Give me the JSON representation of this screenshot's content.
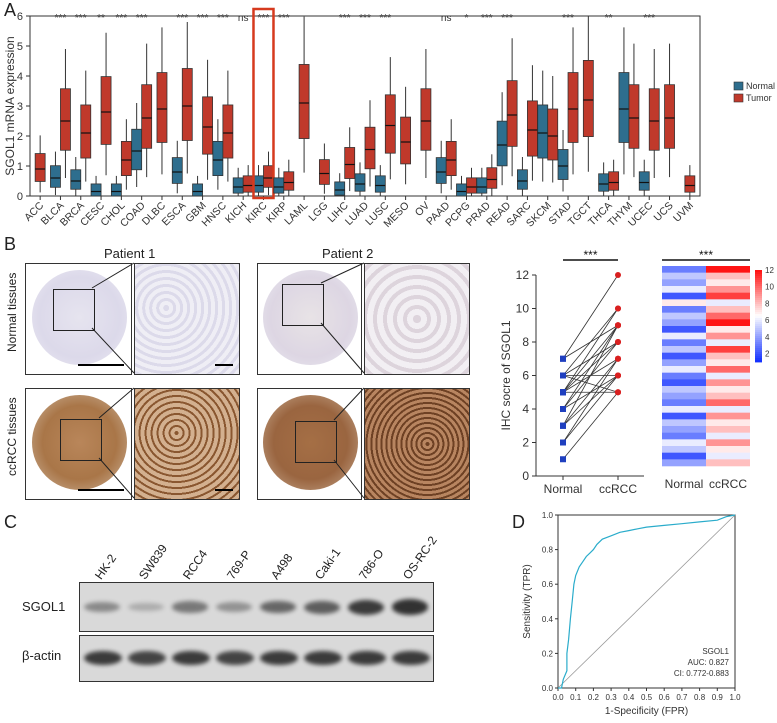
{
  "panels": {
    "A": "A",
    "B": "B",
    "C": "C",
    "D": "D"
  },
  "panelA": {
    "chart_data": {
      "type": "boxplot",
      "ylabel": "SGOL1 mRNA expression",
      "ylim": [
        0,
        6
      ],
      "yticks": [
        "0",
        "1",
        "2",
        "3",
        "4",
        "5",
        "6"
      ],
      "legend": {
        "position": "right",
        "items": [
          {
            "name": "Normal",
            "color": "#2e6e8e"
          },
          {
            "name": "Tumor",
            "color": "#c0392b"
          }
        ]
      },
      "highlight": "KIRC",
      "categories": [
        "ACC",
        "BLCA",
        "BRCA",
        "CESC",
        "CHOL",
        "COAD",
        "DLBC",
        "ESCA",
        "GBM",
        "HNSC",
        "KICH",
        "KIRC",
        "KIRP",
        "LAML",
        "LGG",
        "LIHC",
        "LUAD",
        "LUSC",
        "MESO",
        "OV",
        "PAAD",
        "PCPG",
        "PRAD",
        "READ",
        "SARC",
        "SKCM",
        "STAD",
        "TGCT",
        "THCA",
        "THYM",
        "UCEC",
        "UCS",
        "UVM"
      ],
      "significance": [
        "",
        "***",
        "***",
        "**",
        "***",
        "***",
        "",
        "***",
        "***",
        "***",
        "ns",
        "***",
        "***",
        "",
        "",
        "***",
        "***",
        "***",
        "",
        "",
        "ns",
        "*",
        "***",
        "***",
        "",
        "",
        "***",
        "",
        "**",
        "",
        "***",
        "",
        ""
      ],
      "series": [
        {
          "name": "Normal",
          "values": [
            null,
            0.6,
            0.5,
            0.15,
            0.15,
            1.5,
            null,
            0.8,
            0.15,
            1.2,
            0.3,
            0.35,
            0.3,
            null,
            null,
            0.2,
            0.4,
            0.35,
            null,
            null,
            0.8,
            0.15,
            0.3,
            1.7,
            0.5,
            2.1,
            1.0,
            null,
            0.4,
            2.9,
            0.45,
            null,
            null
          ]
        },
        {
          "name": "Tumor",
          "values": [
            0.9,
            2.5,
            2.1,
            2.8,
            1.2,
            2.6,
            2.9,
            3.0,
            2.3,
            2.1,
            0.35,
            0.6,
            0.45,
            3.1,
            0.75,
            1.05,
            1.55,
            2.35,
            1.8,
            2.5,
            1.2,
            0.3,
            0.55,
            2.7,
            2.2,
            2.0,
            2.9,
            3.2,
            0.45,
            2.6,
            2.5,
            2.6,
            0.35
          ]
        }
      ]
    }
  },
  "panelB": {
    "patient1": "Patient 1",
    "patient2": "Patient 2",
    "row_normal": "Normal tissues",
    "row_ccrcc": "ccRCC tissues",
    "chart_data": {
      "type": "paired-dot",
      "ylabel": "IHC socre of SGOL1",
      "ylim": [
        0,
        12
      ],
      "yticks": [
        "0",
        "2",
        "4",
        "6",
        "8",
        "10",
        "12"
      ],
      "categories": [
        "Normal",
        "ccRCC"
      ],
      "significance": "***",
      "pairs": [
        [
          1,
          5
        ],
        [
          2,
          6
        ],
        [
          3,
          7
        ],
        [
          3,
          6
        ],
        [
          4,
          8
        ],
        [
          4,
          9
        ],
        [
          5,
          5
        ],
        [
          5,
          7
        ],
        [
          5,
          10
        ],
        [
          6,
          6
        ],
        [
          6,
          8
        ],
        [
          7,
          9
        ],
        [
          7,
          12
        ],
        [
          4,
          6
        ],
        [
          5,
          8
        ],
        [
          6,
          10
        ],
        [
          3,
          9
        ],
        [
          2,
          7
        ],
        [
          6,
          5
        ],
        [
          5,
          9
        ]
      ]
    },
    "heatmap": {
      "type": "heatmap",
      "columns": [
        "Normal",
        "ccRCC"
      ],
      "significance": "***",
      "scale_ticks": [
        "2",
        "4",
        "6",
        "8",
        "10",
        "12"
      ],
      "normal_values": [
        3,
        5,
        4,
        6,
        2,
        7,
        3,
        5,
        4,
        2,
        6,
        3,
        5,
        2,
        4,
        6,
        3,
        2,
        5,
        4,
        3,
        6,
        2,
        5,
        4,
        3,
        6,
        5,
        2,
        4
      ],
      "ccrcc_values": [
        12,
        8,
        7,
        9,
        11,
        6,
        8,
        10,
        12,
        7,
        9,
        6,
        11,
        8,
        7,
        10,
        6,
        9,
        7,
        8,
        10,
        6,
        9,
        7,
        8,
        6,
        9,
        7,
        6,
        8
      ]
    }
  },
  "panelC": {
    "lanes": [
      "HK-2",
      "SW839",
      "RCC4",
      "769-P",
      "A498",
      "Caki-1",
      "786-O",
      "OS-RC-2"
    ],
    "row1": "SGOL1",
    "row2": "β-actin",
    "sgol1_intensity": [
      0.45,
      0.25,
      0.55,
      0.4,
      0.65,
      0.7,
      0.9,
      0.95
    ],
    "actin_intensity": [
      0.9,
      0.85,
      0.9,
      0.85,
      0.9,
      0.9,
      0.9,
      0.9
    ]
  },
  "panelD": {
    "chart_data": {
      "type": "roc",
      "xlabel": "1-Specificity (FPR)",
      "ylabel": "Sensitivity (TPR)",
      "xlim": [
        0,
        1
      ],
      "ylim": [
        0,
        1
      ],
      "xticks": [
        "0.0",
        "0.1",
        "0.2",
        "0.3",
        "0.4",
        "0.5",
        "0.6",
        "0.7",
        "0.8",
        "0.9",
        "1.0"
      ],
      "yticks": [
        "0.0",
        "0.2",
        "0.4",
        "0.6",
        "0.8",
        "1.0"
      ],
      "annotation": [
        "SGOL1",
        "AUC: 0.827",
        "CI: 0.772-0.883"
      ],
      "curve_color": "#2aaccb",
      "fpr": [
        0,
        0.02,
        0.03,
        0.05,
        0.05,
        0.06,
        0.07,
        0.08,
        0.09,
        0.1,
        0.12,
        0.14,
        0.16,
        0.18,
        0.2,
        0.22,
        0.25,
        0.3,
        0.35,
        0.4,
        0.45,
        0.5,
        0.6,
        0.7,
        0.8,
        0.9,
        0.95,
        1.0
      ],
      "tpr": [
        0,
        0.0,
        0.05,
        0.1,
        0.2,
        0.28,
        0.4,
        0.5,
        0.6,
        0.65,
        0.7,
        0.73,
        0.76,
        0.78,
        0.8,
        0.83,
        0.86,
        0.88,
        0.9,
        0.91,
        0.92,
        0.93,
        0.94,
        0.95,
        0.96,
        0.97,
        0.99,
        1.0
      ]
    }
  }
}
